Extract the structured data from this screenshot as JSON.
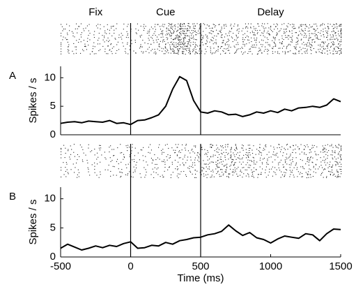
{
  "epochs": [
    "Fix",
    "Cue",
    "Delay"
  ],
  "chart_data": [
    {
      "type": "line",
      "panel_label": "A",
      "ylabel": "Spikes / s",
      "x": [
        -500,
        -450,
        -400,
        -350,
        -300,
        -250,
        -200,
        -150,
        -100,
        -50,
        0,
        50,
        100,
        150,
        200,
        250,
        300,
        350,
        400,
        450,
        500,
        550,
        600,
        650,
        700,
        750,
        800,
        850,
        900,
        950,
        1000,
        1050,
        1100,
        1150,
        1200,
        1250,
        1300,
        1350,
        1400,
        1450,
        1500
      ],
      "values": [
        2,
        2.2,
        2.3,
        2.1,
        2.4,
        2.3,
        2.2,
        2.5,
        2,
        2.1,
        1.8,
        2.5,
        2.6,
        3,
        3.5,
        5,
        8,
        10.2,
        9.5,
        6,
        4,
        3.8,
        4.2,
        4,
        3.5,
        3.6,
        3.2,
        3.5,
        4,
        3.8,
        4.2,
        3.9,
        4.5,
        4.2,
        4.7,
        4.8,
        5,
        4.8,
        5.2,
        6.3,
        5.8
      ],
      "color": "#000000",
      "xlim": [
        -500,
        1500
      ],
      "ylim": [
        0,
        12
      ],
      "yticks": [
        0,
        5,
        10
      ],
      "event_lines": [
        0,
        500
      ]
    },
    {
      "type": "line",
      "panel_label": "B",
      "ylabel": "Spikes / s",
      "xlabel": "Time (ms)",
      "x": [
        -500,
        -450,
        -400,
        -350,
        -300,
        -250,
        -200,
        -150,
        -100,
        -50,
        0,
        50,
        100,
        150,
        200,
        250,
        300,
        350,
        400,
        450,
        500,
        550,
        600,
        650,
        700,
        750,
        800,
        850,
        900,
        950,
        1000,
        1050,
        1100,
        1150,
        1200,
        1250,
        1300,
        1350,
        1400,
        1450,
        1500
      ],
      "values": [
        1.5,
        2.2,
        1.7,
        1.2,
        1.5,
        1.9,
        1.6,
        2,
        1.8,
        2.3,
        2.6,
        1.5,
        1.6,
        2,
        1.9,
        2.5,
        2.2,
        2.8,
        3,
        3.3,
        3.4,
        3.8,
        4,
        4.4,
        5.5,
        4.5,
        3.7,
        4.2,
        3.3,
        3,
        2.4,
        3.1,
        3.6,
        3.4,
        3.2,
        4,
        3.8,
        2.8,
        4,
        4.8,
        4.7
      ],
      "color": "#000000",
      "xlim": [
        -500,
        1500
      ],
      "ylim": [
        0,
        12
      ],
      "yticks": [
        0,
        5,
        10
      ],
      "xticks": [
        -500,
        0,
        500,
        1000,
        1500
      ],
      "event_lines": [
        0,
        500
      ]
    }
  ]
}
